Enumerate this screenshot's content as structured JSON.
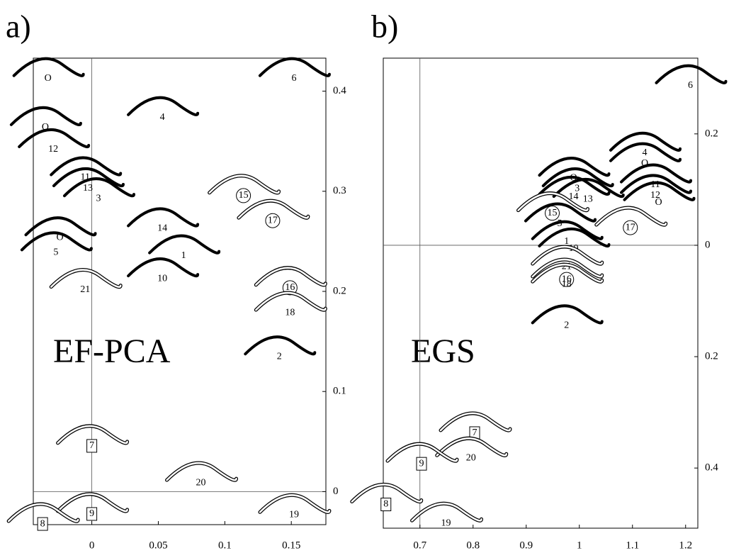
{
  "chart_data": [
    {
      "type": "scatter",
      "panel_label": "a)",
      "title": "EF-PCA",
      "xlim": [
        -0.044,
        0.176
      ],
      "ylim": [
        -0.033,
        0.433
      ],
      "xticks": [
        0,
        0.05,
        0.1,
        0.15
      ],
      "yticks": [
        0,
        0.1,
        0.2,
        0.3,
        0.4
      ],
      "reference_lines": {
        "x": 0,
        "y": 0
      },
      "points": [
        {
          "label": "O",
          "x": -0.033,
          "y": 0.424,
          "style": "solid"
        },
        {
          "label": "6",
          "x": 0.152,
          "y": 0.424,
          "style": "solid"
        },
        {
          "label": "4",
          "x": 0.053,
          "y": 0.385,
          "style": "solid"
        },
        {
          "label": "O",
          "x": -0.035,
          "y": 0.375,
          "style": "solid"
        },
        {
          "label": "12",
          "x": -0.029,
          "y": 0.353,
          "style": "solid"
        },
        {
          "label": "11",
          "x": -0.005,
          "y": 0.325,
          "style": "solid"
        },
        {
          "label": "13",
          "x": -0.003,
          "y": 0.314,
          "style": "solid"
        },
        {
          "label": "3",
          "x": 0.005,
          "y": 0.304,
          "style": "solid"
        },
        {
          "label": "15",
          "x": 0.114,
          "y": 0.307,
          "style": "outline",
          "frame": "circle"
        },
        {
          "label": "17",
          "x": 0.136,
          "y": 0.282,
          "style": "outline",
          "frame": "circle"
        },
        {
          "label": "14",
          "x": 0.053,
          "y": 0.274,
          "style": "solid"
        },
        {
          "label": "O",
          "x": -0.024,
          "y": 0.265,
          "style": "solid"
        },
        {
          "label": "5",
          "x": -0.027,
          "y": 0.25,
          "style": "solid"
        },
        {
          "label": "1",
          "x": 0.069,
          "y": 0.247,
          "style": "solid"
        },
        {
          "label": "10",
          "x": 0.053,
          "y": 0.224,
          "style": "solid"
        },
        {
          "label": "21",
          "x": -0.005,
          "y": 0.213,
          "style": "outline"
        },
        {
          "label": "16",
          "x": 0.149,
          "y": 0.215,
          "style": "outline",
          "frame": "circle"
        },
        {
          "label": "18",
          "x": 0.149,
          "y": 0.19,
          "style": "outline"
        },
        {
          "label": "2",
          "x": 0.141,
          "y": 0.146,
          "style": "solid"
        },
        {
          "label": "7",
          "x": 0,
          "y": 0.057,
          "style": "outline",
          "frame": "box"
        },
        {
          "label": "20",
          "x": 0.082,
          "y": 0.02,
          "style": "outline"
        },
        {
          "label": "9",
          "x": 0,
          "y": -0.011,
          "style": "outline",
          "frame": "box"
        },
        {
          "label": "8",
          "x": -0.037,
          "y": -0.021,
          "style": "outline",
          "frame": "box"
        },
        {
          "label": "19",
          "x": 0.152,
          "y": -0.012,
          "style": "outline"
        }
      ]
    },
    {
      "type": "scatter",
      "panel_label": "b)",
      "title": "EGS",
      "xlim": [
        0.631,
        1.223
      ],
      "ylim": [
        -0.508,
        0.336
      ],
      "xticks": [
        0.7,
        0.8,
        0.9,
        1,
        1.1,
        1.2
      ],
      "yticks": [
        0.2,
        0,
        {
          "value": -0.2,
          "label": "0.2"
        },
        {
          "value": -0.4,
          "label": "0.4"
        }
      ],
      "reference_lines": {
        "x": 0.7,
        "y": 0
      },
      "points": [
        {
          "label": "6",
          "x": 1.209,
          "y": 0.307,
          "style": "solid"
        },
        {
          "label": "4",
          "x": 1.123,
          "y": 0.186,
          "style": "solid"
        },
        {
          "label": "O",
          "x": 1.123,
          "y": 0.167,
          "style": "solid"
        },
        {
          "label": "11",
          "x": 1.143,
          "y": 0.129,
          "style": "solid"
        },
        {
          "label": "12",
          "x": 1.143,
          "y": 0.11,
          "style": "solid"
        },
        {
          "label": "O",
          "x": 1.149,
          "y": 0.097,
          "style": "solid"
        },
        {
          "label": "O",
          "x": 0.989,
          "y": 0.141,
          "style": "solid"
        },
        {
          "label": "3",
          "x": 0.996,
          "y": 0.122,
          "style": "solid"
        },
        {
          "label": "13",
          "x": 1.016,
          "y": 0.103,
          "style": "solid"
        },
        {
          "label": "14",
          "x": 0.989,
          "y": 0.107,
          "style": "solid"
        },
        {
          "label": "15",
          "x": 0.949,
          "y": 0.078,
          "style": "outline",
          "frame": "circle"
        },
        {
          "label": "5",
          "x": 0.963,
          "y": 0.059,
          "style": "solid"
        },
        {
          "label": "17",
          "x": 1.096,
          "y": 0.052,
          "style": "outline",
          "frame": "circle"
        },
        {
          "label": "1",
          "x": 0.976,
          "y": 0.027,
          "style": "solid"
        },
        {
          "label": "10",
          "x": 0.989,
          "y": 0.014,
          "style": "solid"
        },
        {
          "label": "21",
          "x": 0.976,
          "y": -0.018,
          "style": "outline"
        },
        {
          "label": "16",
          "x": 0.976,
          "y": -0.041,
          "style": "outline",
          "frame": "circle"
        },
        {
          "label": "18",
          "x": 0.976,
          "y": -0.05,
          "style": "outline"
        },
        {
          "label": "2",
          "x": 0.976,
          "y": -0.124,
          "style": "solid"
        },
        {
          "label": "7",
          "x": 0.803,
          "y": -0.317,
          "style": "outline",
          "frame": "box"
        },
        {
          "label": "20",
          "x": 0.796,
          "y": -0.362,
          "style": "outline"
        },
        {
          "label": "9",
          "x": 0.703,
          "y": -0.372,
          "style": "outline",
          "frame": "box"
        },
        {
          "label": "8",
          "x": 0.636,
          "y": -0.445,
          "style": "outline",
          "frame": "box"
        },
        {
          "label": "19",
          "x": 0.749,
          "y": -0.479,
          "style": "outline"
        }
      ]
    }
  ]
}
